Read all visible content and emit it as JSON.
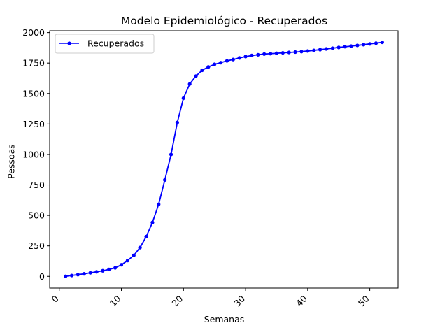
{
  "chart_data": {
    "type": "line",
    "title": "Modelo Epidemiológico - Recuperados",
    "xlabel": "Semanas",
    "ylabel": "Pessoas",
    "xlim": [
      -1.55,
      54.55
    ],
    "ylim": [
      -96,
      2015
    ],
    "xticks": [
      0,
      10,
      20,
      30,
      40,
      50
    ],
    "yticks": [
      0,
      250,
      500,
      750,
      1000,
      1250,
      1500,
      1750,
      2000
    ],
    "grid": false,
    "legend_position": "top-left",
    "series": [
      {
        "name": "Recuperados",
        "color": "#0000ff",
        "marker": "circle",
        "x": [
          1,
          2,
          3,
          4,
          5,
          6,
          7,
          8,
          9,
          10,
          11,
          12,
          13,
          14,
          15,
          16,
          17,
          18,
          19,
          20,
          21,
          22,
          23,
          24,
          25,
          26,
          27,
          28,
          29,
          30,
          31,
          32,
          33,
          34,
          35,
          36,
          37,
          38,
          39,
          40,
          41,
          42,
          43,
          44,
          45,
          46,
          47,
          48,
          49,
          50,
          51,
          52
        ],
        "y": [
          0,
          7,
          14,
          21,
          29,
          37,
          46,
          57,
          70,
          95,
          130,
          172,
          236,
          326,
          442,
          591,
          791,
          1000,
          1262,
          1462,
          1578,
          1643,
          1691,
          1718,
          1740,
          1753,
          1768,
          1779,
          1792,
          1803,
          1812,
          1818,
          1824,
          1827,
          1830,
          1834,
          1837,
          1840,
          1844,
          1849,
          1854,
          1860,
          1866,
          1872,
          1878,
          1884,
          1889,
          1895,
          1901,
          1907,
          1913,
          1920
        ]
      }
    ]
  }
}
